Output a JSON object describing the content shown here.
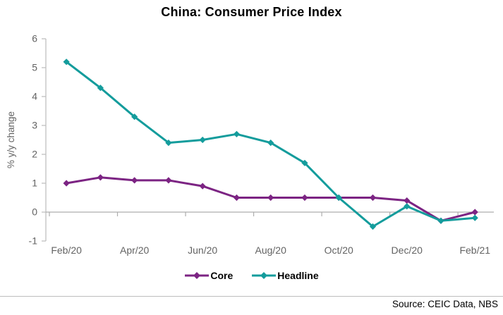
{
  "title": "China: Consumer Price Index",
  "source": "Source: CEIC Data, NBS",
  "colors": {
    "core": "#7C2483",
    "headline": "#149C9C",
    "axis_text": "#636363",
    "axis_line": "#BFBFBF",
    "zero_line": "#ADADAD",
    "divider": "#BDBDBD",
    "title_text": "#000000",
    "source_text": "#000000"
  },
  "legend": {
    "items": [
      {
        "label": "Core",
        "color": "#7C2483"
      },
      {
        "label": "Headline",
        "color": "#149C9C"
      }
    ]
  },
  "chart_data": {
    "type": "line",
    "title": "China: Consumer Price Index",
    "categories": [
      "Feb/20",
      "Mar/20",
      "Apr/20",
      "May/20",
      "Jun/20",
      "Jul/20",
      "Aug/20",
      "Sep/20",
      "Oct/20",
      "Nov/20",
      "Dec/20",
      "Jan/21",
      "Feb/21"
    ],
    "x_tick_labels": [
      "Feb/20",
      "Apr/20",
      "Jun/20",
      "Aug/20",
      "Oct/20",
      "Dec/20",
      "Feb/21"
    ],
    "x_tick_label_every": 2,
    "series": [
      {
        "name": "Core",
        "color": "#7C2483",
        "marker": "diamond",
        "values": [
          1.0,
          1.2,
          1.1,
          1.1,
          0.9,
          0.5,
          0.5,
          0.5,
          0.5,
          0.5,
          0.4,
          -0.3,
          0.0
        ]
      },
      {
        "name": "Headline",
        "color": "#149C9C",
        "marker": "diamond",
        "values": [
          5.2,
          4.3,
          3.3,
          2.4,
          2.5,
          2.7,
          2.4,
          1.7,
          0.5,
          -0.5,
          0.2,
          -0.3,
          -0.2
        ]
      }
    ],
    "xlabel": "",
    "ylabel": "% y/y change",
    "ylim": [
      -1,
      6
    ],
    "yticks": [
      -1,
      0,
      1,
      2,
      3,
      4,
      5,
      6
    ],
    "grid": "zero-line-only",
    "legend_position": "bottom"
  }
}
